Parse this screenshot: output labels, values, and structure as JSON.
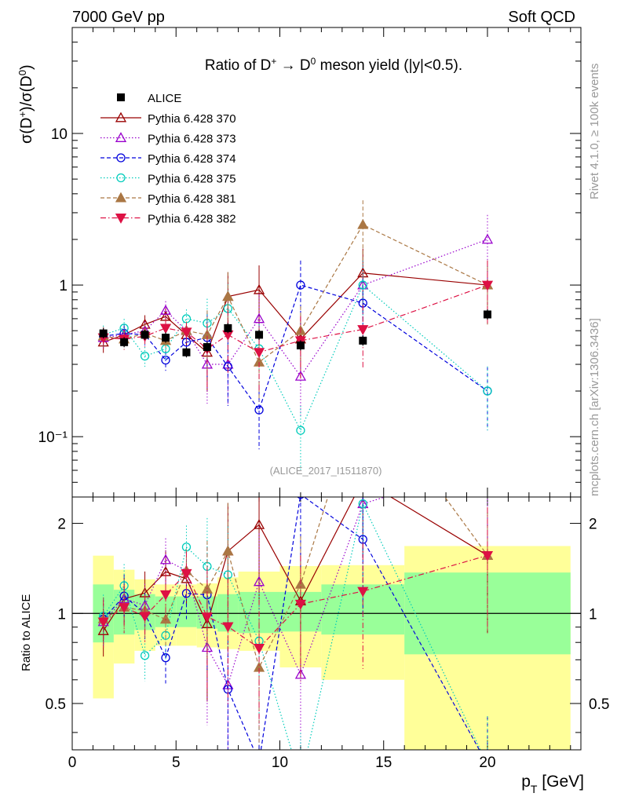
{
  "header": {
    "left": "7000 GeV pp",
    "right": "Soft QCD"
  },
  "side": {
    "rivet": "Rivet 4.1.0, ≥ 100k events",
    "mcplots": "mcplots.cern.ch [arXiv:1306.3436]"
  },
  "chart_data": {
    "type": "scatter",
    "title": "Ratio of D⁺ → D⁰ meson yield (|y|<0.5).",
    "watermark": "(ALICE_2017_I1511870)",
    "xlabel": "p_T [GeV]",
    "ylabel": "σ(D⁺)/σ(D⁰)",
    "ratio_ylabel": "Ratio to ALICE",
    "xlim": [
      0,
      24.5
    ],
    "ylim": [
      0.04,
      50
    ],
    "ratio_ylim": [
      0.35,
      2.45
    ],
    "xticks": [
      0,
      5,
      10,
      15,
      20
    ],
    "yticks": [
      {
        "v": 0.1,
        "label": "10⁻¹"
      },
      {
        "v": 1,
        "label": "1"
      },
      {
        "v": 10,
        "label": "10"
      }
    ],
    "ratio_yticks": [
      0.5,
      1,
      2
    ],
    "x": [
      1.5,
      2.5,
      3.5,
      4.5,
      5.5,
      6.5,
      7.5,
      9,
      11,
      14,
      20
    ],
    "data": {
      "name": "ALICE",
      "values": [
        0.48,
        0.42,
        0.47,
        0.45,
        0.36,
        0.39,
        0.52,
        0.47,
        0.4,
        0.43,
        0.64
      ],
      "band_edges": [
        1,
        2,
        3,
        4,
        5,
        6,
        7,
        8,
        10,
        12,
        16,
        24
      ],
      "band_inner": [
        [
          0.8,
          1.25
        ],
        [
          0.85,
          1.2
        ],
        [
          0.88,
          1.16
        ],
        [
          0.9,
          1.14
        ],
        [
          0.9,
          1.14
        ],
        [
          0.89,
          1.14
        ],
        [
          0.87,
          1.16
        ],
        [
          0.86,
          1.18
        ],
        [
          0.87,
          1.18
        ],
        [
          0.85,
          1.25
        ],
        [
          0.73,
          1.37
        ]
      ],
      "band_outer": [
        [
          0.52,
          1.56
        ],
        [
          0.68,
          1.4
        ],
        [
          0.75,
          1.3
        ],
        [
          0.78,
          1.25
        ],
        [
          0.78,
          1.25
        ],
        [
          0.77,
          1.26
        ],
        [
          0.76,
          1.32
        ],
        [
          0.75,
          1.38
        ],
        [
          0.66,
          1.44
        ],
        [
          0.6,
          1.45
        ],
        [
          0.35,
          1.68
        ]
      ]
    },
    "series": [
      {
        "name": "Pythia 6.428 370",
        "color": "#990000",
        "dash": "",
        "marker": "triangle-open",
        "values": [
          0.42,
          0.47,
          0.55,
          0.62,
          0.47,
          0.36,
          0.84,
          0.93,
          0.44,
          1.2,
          1.0
        ]
      },
      {
        "name": "Pythia 6.428 373",
        "color": "#9900cc",
        "dash": "1.5,2.5",
        "marker": "triangle-open",
        "values": [
          0.45,
          0.47,
          0.5,
          0.68,
          0.5,
          0.3,
          0.3,
          0.6,
          0.25,
          1.0,
          2.0
        ]
      },
      {
        "name": "Pythia 6.428 374",
        "color": "#0000dd",
        "dash": "5,3",
        "marker": "circle-open",
        "values": [
          0.46,
          0.48,
          0.47,
          0.32,
          0.42,
          0.45,
          0.29,
          0.15,
          1.0,
          0.76,
          0.2
        ]
      },
      {
        "name": "Pythia 6.428 375",
        "color": "#00ccbb",
        "dash": "1.5,2.5",
        "marker": "circle-open",
        "values": [
          0.47,
          0.52,
          0.34,
          0.38,
          0.6,
          0.56,
          0.7,
          0.38,
          0.11,
          1.0,
          0.2
        ]
      },
      {
        "name": "Pythia 6.428 381",
        "color": "#aa7744",
        "dash": "5,3",
        "marker": "triangle-filled",
        "values": [
          0.46,
          0.44,
          0.48,
          0.43,
          0.5,
          0.47,
          0.84,
          0.31,
          0.5,
          2.5,
          1.0
        ]
      },
      {
        "name": "Pythia 6.428 382",
        "color": "#dd1144",
        "dash": "7,3,1.5,3",
        "marker": "triangle-down-filled",
        "values": [
          0.45,
          0.44,
          0.46,
          0.52,
          0.49,
          0.38,
          0.47,
          0.36,
          0.43,
          0.51,
          1.0
        ]
      }
    ]
  }
}
